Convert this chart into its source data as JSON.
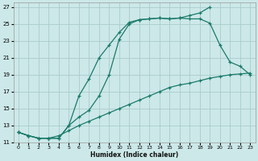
{
  "xlabel": "Humidex (Indice chaleur)",
  "bg_color": "#cce8e8",
  "line_color": "#1a7a6a",
  "grid_color": "#aacccc",
  "xlim": [
    -0.5,
    23.5
  ],
  "ylim": [
    11,
    27.5
  ],
  "xticks": [
    0,
    1,
    2,
    3,
    4,
    5,
    6,
    7,
    8,
    9,
    10,
    11,
    12,
    13,
    14,
    15,
    16,
    17,
    18,
    19,
    20,
    21,
    22,
    23
  ],
  "yticks": [
    11,
    13,
    15,
    17,
    19,
    21,
    23,
    25,
    27
  ],
  "line1_x": [
    0,
    1,
    2,
    3,
    4,
    5,
    6,
    7,
    8,
    9,
    10,
    11,
    12,
    13,
    14,
    15,
    16,
    17,
    18,
    19
  ],
  "line1_y": [
    12.2,
    11.8,
    11.5,
    11.5,
    11.5,
    13.0,
    16.5,
    18.5,
    21.0,
    22.5,
    24.0,
    25.2,
    25.5,
    25.6,
    25.7,
    25.6,
    25.7,
    26.0,
    26.3,
    27.0
  ],
  "line2_x": [
    0,
    1,
    2,
    3,
    4,
    5,
    6,
    7,
    8,
    9,
    10,
    11,
    12,
    13,
    14,
    15,
    16,
    17,
    18,
    19,
    20,
    21,
    22,
    23
  ],
  "line2_y": [
    12.2,
    11.8,
    11.5,
    11.5,
    11.5,
    13.0,
    14.0,
    14.8,
    16.5,
    19.0,
    23.2,
    25.0,
    25.5,
    25.6,
    25.7,
    25.6,
    25.7,
    25.6,
    25.6,
    25.1,
    22.5,
    20.5,
    20.0,
    19.0
  ],
  "line3_x": [
    0,
    1,
    2,
    3,
    4,
    5,
    6,
    7,
    8,
    9,
    10,
    11,
    12,
    13,
    14,
    15,
    16,
    17,
    18,
    19,
    20,
    21,
    22,
    23
  ],
  "line3_y": [
    12.2,
    11.8,
    11.5,
    11.5,
    11.8,
    12.4,
    13.0,
    13.5,
    14.0,
    14.5,
    15.0,
    15.5,
    16.0,
    16.5,
    17.0,
    17.5,
    17.8,
    18.0,
    18.3,
    18.6,
    18.8,
    19.0,
    19.1,
    19.2
  ]
}
